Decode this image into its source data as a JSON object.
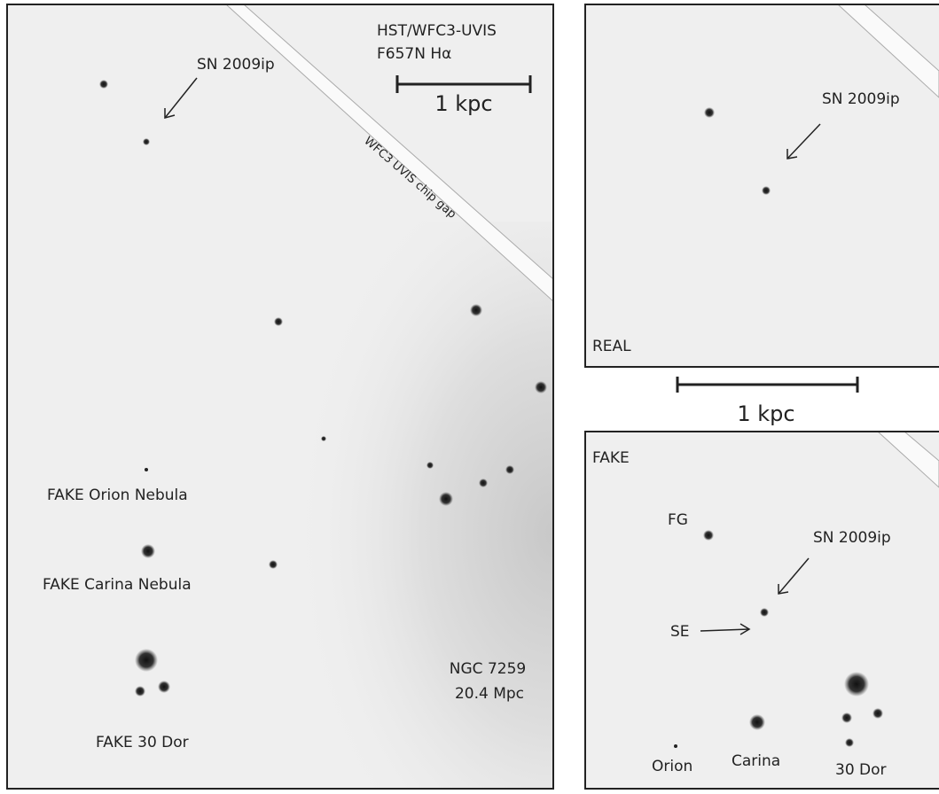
{
  "left_panel": {
    "instrument": "HST/WFC3-UVIS",
    "filter": "F657N Hα",
    "scale_bar": "1 kpc",
    "chip_gap": "WFC3 UVIS chip gap",
    "target": "SN 2009ip",
    "galaxy": "NGC 7259",
    "distance": "20.4 Mpc",
    "labels": [
      "FAKE Orion Nebula",
      "FAKE Carina Nebula",
      "FAKE 30 Dor"
    ]
  },
  "top_right_panel": {
    "label": "REAL",
    "target": "SN 2009ip"
  },
  "scale_bar": "1 kpc",
  "bottom_right_panel": {
    "label": "FAKE",
    "foreground": "FG",
    "target": "SN 2009ip",
    "southeast": "SE",
    "regions": [
      "Orion",
      "Carina",
      "30 Dor"
    ]
  }
}
